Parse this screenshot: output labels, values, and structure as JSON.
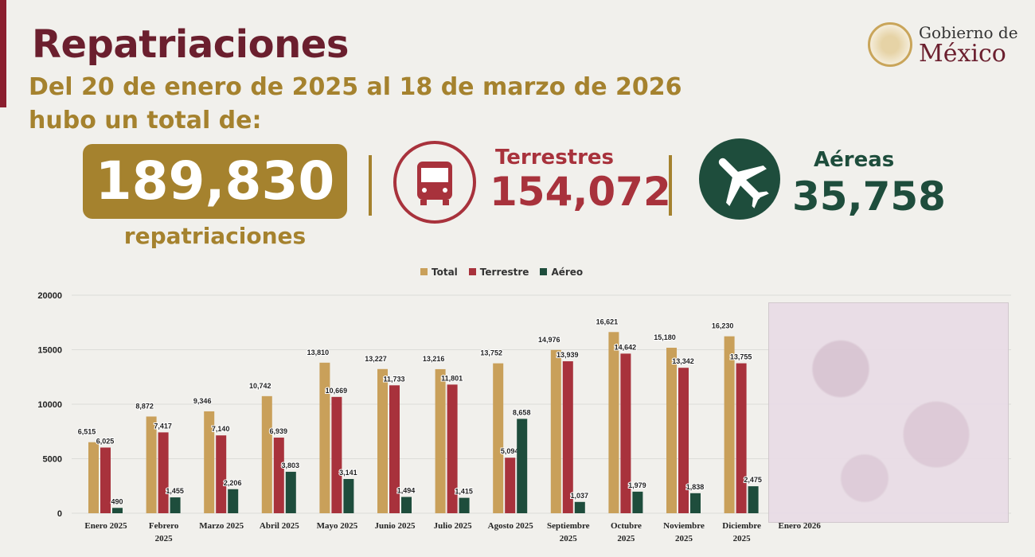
{
  "header": {
    "title": "Repatriaciones",
    "subtitle_line1": "Del 20 de enero de 2025 al 18 de marzo de 2026",
    "subtitle_line2": "hubo un total de:"
  },
  "logo": {
    "line1": "Gobierno de",
    "line2": "México"
  },
  "summary": {
    "total": {
      "value": "189,830",
      "label": "repatriaciones"
    },
    "terrestres": {
      "label": "Terrestres",
      "value": "154,072",
      "icon": "bus-icon"
    },
    "aereas": {
      "label": "Aéreas",
      "value": "35,758",
      "icon": "airplane-icon"
    }
  },
  "colors": {
    "total": "#c9a05a",
    "terrestre": "#a8323c",
    "aereo": "#1e4d3c",
    "accent_gold": "#a5822e",
    "accent_wine": "#6b1f2e"
  },
  "chart_data": {
    "type": "bar",
    "legend": [
      "Total",
      "Terrestre",
      "Aéreo"
    ],
    "legend_position": "top",
    "grid": true,
    "ylim": [
      0,
      20000
    ],
    "yticks": [
      "0",
      "5000",
      "10000",
      "15000",
      "20000"
    ],
    "categories": [
      "Enero 2025",
      "Febrero 2025",
      "Marzo 2025",
      "Abril 2025",
      "Mayo 2025",
      "Junio 2025",
      "Julio 2025",
      "Agosto 2025",
      "Septiembre 2025",
      "Octubre 2025",
      "Noviembre 2025",
      "Diciembre 2025",
      "Enero 2026"
    ],
    "series": [
      {
        "name": "Total",
        "values": [
          6515,
          8872,
          9346,
          10742,
          13810,
          13227,
          13216,
          13752,
          14976,
          16621,
          15180,
          16230,
          null
        ]
      },
      {
        "name": "Terrestre",
        "values": [
          6025,
          7417,
          7140,
          6939,
          10669,
          11733,
          11801,
          5094,
          13939,
          14642,
          13342,
          13755,
          null
        ]
      },
      {
        "name": "Aéreo",
        "values": [
          490,
          1455,
          2206,
          3803,
          3141,
          1494,
          1415,
          8658,
          1037,
          1979,
          1838,
          2475,
          null
        ]
      }
    ]
  }
}
